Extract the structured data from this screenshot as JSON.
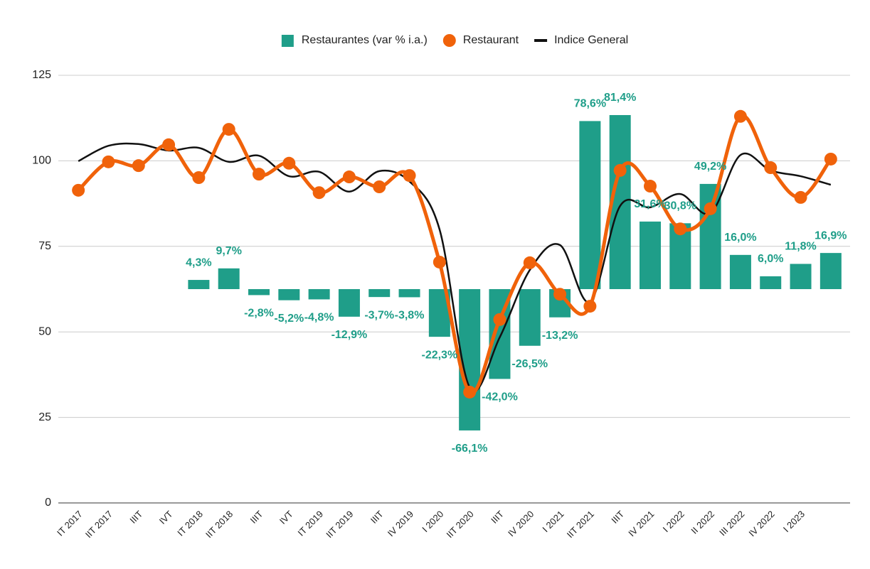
{
  "chart_data": {
    "type": "combo",
    "legend": "top",
    "grid": true,
    "categories": [
      "IT 2017",
      "IIT 2017",
      "IIIT",
      "IVT",
      "IT 2018",
      "IIT 2018",
      "IIIT",
      "IVT",
      "IT 2019",
      "IIT 2019",
      "IIIT",
      "IV 2019",
      "I 2020",
      "IIT 2020",
      "IIIT",
      "IV 2020",
      "I 2021",
      "IIT 2021",
      "IIIT",
      "IV 2021",
      "I 2022",
      "II 2022",
      "III 2022",
      "IV 2022",
      "I 2023",
      null
    ],
    "ylim": [
      0,
      125
    ],
    "yticks": [
      0,
      25,
      50,
      75,
      100,
      125
    ],
    "y2lim": [
      -100,
      100
    ],
    "series": [
      {
        "name": "Restaurantes (var % i.a.)",
        "type": "bar",
        "axis": "y2",
        "color": "#1f9e89",
        "values": [
          null,
          null,
          null,
          null,
          4.3,
          9.7,
          -2.8,
          -5.2,
          -4.8,
          -12.9,
          -3.7,
          -3.8,
          -22.3,
          -66.1,
          -42.0,
          -26.5,
          -13.2,
          78.6,
          81.4,
          31.6,
          30.8,
          49.2,
          16.0,
          6.0,
          11.8,
          16.9
        ],
        "value_labels": [
          null,
          null,
          null,
          null,
          "4,3%",
          "9,7%",
          "-2,8%",
          "-5,2%",
          "-4,8%",
          "-12,9%",
          "-3,7%",
          "-3,8%",
          "-22,3%",
          "-66,1%",
          "-42,0%",
          "-26,5%",
          "-13,2%",
          "78,6%",
          "81,4%",
          "31,6%",
          "30,8%",
          "49,2%",
          "16,0%",
          "6,0%",
          "11,8%",
          "16,9%"
        ]
      },
      {
        "name": "Restaurant",
        "type": "line",
        "markers": true,
        "color": "#f0620a",
        "values": [
          91.4,
          99.7,
          98.6,
          104.7,
          95.1,
          109.2,
          96.1,
          99.3,
          90.7,
          95.3,
          92.4,
          95.7,
          70.4,
          32.4,
          53.6,
          70.2,
          61.0,
          57.5,
          97.2,
          92.6,
          80.1,
          86.0,
          113.0,
          98.0,
          89.3,
          100.5
        ]
      },
      {
        "name": "Indice General",
        "type": "line",
        "markers": false,
        "color": "#111111",
        "values": [
          99.9,
          104.4,
          104.9,
          103.0,
          103.8,
          99.7,
          101.5,
          95.5,
          96.8,
          91.0,
          97.0,
          94.0,
          80.0,
          33.8,
          48.4,
          68.1,
          75.4,
          58.8,
          86.8,
          86.4,
          90.3,
          84.7,
          101.7,
          97.2,
          95.5,
          93.0
        ]
      }
    ]
  }
}
